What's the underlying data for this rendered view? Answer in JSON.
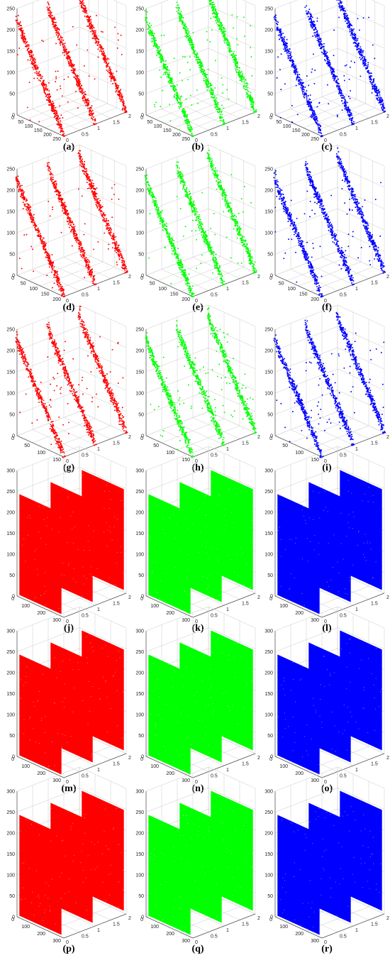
{
  "figure": {
    "colors": {
      "red": "#ff0000",
      "green": "#00ff00",
      "blue": "#0000ff"
    },
    "axes": {
      "x_ticks_scatter": [
        "0",
        "0.5",
        "1",
        "1.5",
        "2"
      ],
      "x_ticks_uniform": [
        "0",
        "0.5",
        "1",
        "1.5",
        "2"
      ]
    },
    "rows": [
      {
        "type": "correlated",
        "z_ticks": [
          "0",
          "50",
          "100",
          "150",
          "200",
          "250"
        ],
        "y_ticks": [
          "0",
          "50",
          "100",
          "150",
          "200",
          "250"
        ]
      },
      {
        "type": "correlated",
        "z_ticks": [
          "0",
          "50",
          "100",
          "150",
          "200",
          "250"
        ],
        "y_ticks": [
          "0",
          "50",
          "100",
          "150",
          "200"
        ]
      },
      {
        "type": "correlated",
        "z_ticks": [
          "0",
          "50",
          "100",
          "150",
          "200",
          "250"
        ],
        "y_ticks": [
          "0",
          "50",
          "100",
          "150"
        ]
      },
      {
        "type": "uniform",
        "z_ticks": [
          "0",
          "50",
          "100",
          "150",
          "200",
          "250",
          "300"
        ],
        "y_ticks": [
          "0",
          "100",
          "200",
          "300"
        ]
      },
      {
        "type": "uniform",
        "z_ticks": [
          "0",
          "50",
          "100",
          "150",
          "200",
          "250",
          "300"
        ],
        "y_ticks": [
          "0",
          "100",
          "200",
          "300"
        ]
      },
      {
        "type": "uniform",
        "z_ticks": [
          "0",
          "50",
          "100",
          "150",
          "200",
          "250",
          "300"
        ],
        "y_ticks": [
          "0",
          "100",
          "200",
          "300"
        ]
      }
    ],
    "panels": [
      {
        "label": "(a)",
        "color": "red"
      },
      {
        "label": "(b)",
        "color": "green"
      },
      {
        "label": "(c)",
        "color": "blue"
      },
      {
        "label": "(d)",
        "color": "red"
      },
      {
        "label": "(e)",
        "color": "green"
      },
      {
        "label": "(f)",
        "color": "blue"
      },
      {
        "label": "(g)",
        "color": "red"
      },
      {
        "label": "(h)",
        "color": "green"
      },
      {
        "label": "(i)",
        "color": "blue"
      },
      {
        "label": "(j)",
        "color": "red"
      },
      {
        "label": "(k)",
        "color": "green"
      },
      {
        "label": "(l)",
        "color": "blue"
      },
      {
        "label": "(m)",
        "color": "red"
      },
      {
        "label": "(n)",
        "color": "green"
      },
      {
        "label": "(o)",
        "color": "blue"
      },
      {
        "label": "(p)",
        "color": "red"
      },
      {
        "label": "(q)",
        "color": "green"
      },
      {
        "label": "(r)",
        "color": "blue"
      }
    ]
  },
  "chart_data": {
    "type": "scatter",
    "title": "",
    "xlabel": "",
    "ylabel": "",
    "zlabel": "",
    "grid": true,
    "panel_count": 18,
    "layout": "6 rows x 3 columns",
    "x_range": [
      0,
      2
    ],
    "x_slices": [
      0,
      1,
      2
    ],
    "correlated_rows": {
      "panels": [
        "(a)",
        "(b)",
        "(c)",
        "(d)",
        "(e)",
        "(f)",
        "(g)",
        "(h)",
        "(i)"
      ],
      "z_range": [
        0,
        250
      ]
    },
    "uniform_rows": {
      "panels": [
        "(j)",
        "(k)",
        "(l)",
        "(m)",
        "(n)",
        "(o)",
        "(p)",
        "(q)",
        "(r)"
      ],
      "z_range": [
        0,
        300
      ]
    }
  }
}
